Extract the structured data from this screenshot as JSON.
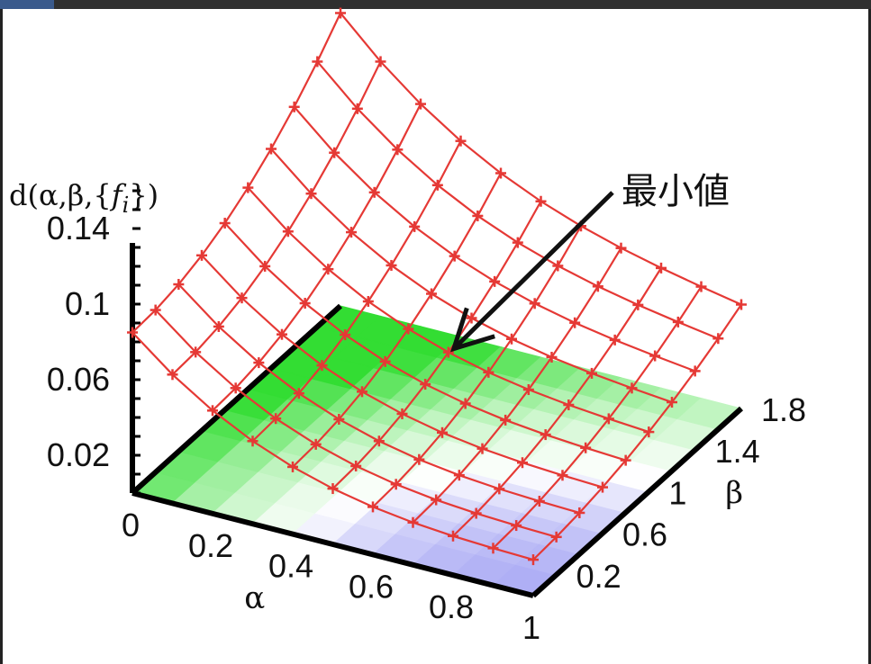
{
  "chart_data": {
    "type": "surface3d",
    "zlabel": "d(α,β,{f_i})",
    "xlabel": "α",
    "ylabel": "β",
    "xticks": [
      "0",
      "0.2",
      "0.4",
      "0.6",
      "0.8",
      "1"
    ],
    "yticks": [
      "0.2",
      "0.6",
      "1",
      "1.4",
      "1.8"
    ],
    "zticks": [
      "0.02",
      "0.06",
      "0.1",
      "0.14"
    ],
    "xlim": [
      0,
      1
    ],
    "ylim": [
      0,
      1.8
    ],
    "zlim": [
      0,
      0.16
    ],
    "alpha_grid": [
      0,
      0.1,
      0.2,
      0.3,
      0.4,
      0.5,
      0.6,
      0.7,
      0.8,
      0.9,
      1.0
    ],
    "beta_grid": [
      0,
      0.2,
      0.4,
      0.6,
      0.8,
      1.0,
      1.2,
      1.4,
      1.6,
      1.8
    ],
    "surface_color": "#e53935",
    "annotation": {
      "text": "最小値",
      "points_to": {
        "alpha": 0.5,
        "beta": 1.0
      }
    },
    "floor_colormap": {
      "high": "#33dd33",
      "mid": "#ffffff",
      "low": "#8c8cf0"
    }
  }
}
